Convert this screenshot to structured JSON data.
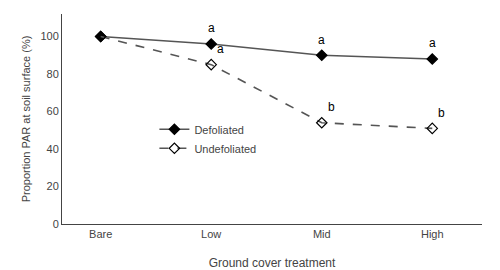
{
  "chart_data": {
    "type": "line",
    "categories": [
      "Bare",
      "Low",
      "Mid",
      "High"
    ],
    "series": [
      {
        "name": "Defoliated",
        "color": "#555555",
        "line_style": "solid",
        "marker": "diamond",
        "values": [
          100,
          96,
          90,
          88
        ],
        "letters": [
          {
            "x": "Low",
            "y": 98,
            "text": "a"
          },
          {
            "x": "Mid",
            "y": 92,
            "text": "a"
          },
          {
            "x": "High",
            "y": 90,
            "text": "a"
          }
        ]
      },
      {
        "name": "Undefoliated",
        "color": "#555555",
        "line_style": "dashed",
        "marker": "diamond-open",
        "values": [
          100,
          85,
          54,
          51
        ],
        "letters": [
          {
            "x": "Low",
            "y": 87,
            "text": "a"
          },
          {
            "x": "Mid",
            "y": 56,
            "text": "b"
          },
          {
            "x": "High",
            "y": 53,
            "text": "b"
          }
        ]
      }
    ],
    "xlabel": "Ground cover treatment",
    "ylabel": "Proportion PAR at soil surface (%)",
    "ylim": [
      0,
      112
    ],
    "yticks": [
      0,
      20,
      40,
      60,
      80,
      100
    ],
    "grid": false,
    "legend": "inside"
  }
}
